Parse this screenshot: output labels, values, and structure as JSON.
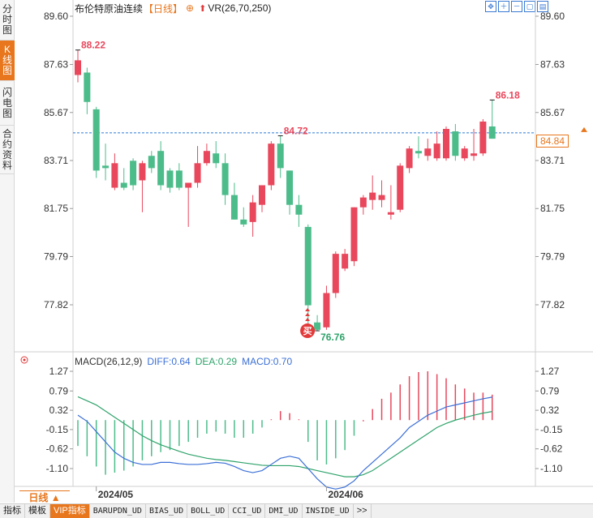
{
  "left_tabs": [
    "分时图",
    "K线图",
    "闪电图",
    "合约资料"
  ],
  "header": {
    "name": "布伦特原油连续",
    "period": "【日线】",
    "plus": "⊕",
    "up_arrow": "⬆",
    "vr": "VR(26,70,250)"
  },
  "tool_icons": [
    "move-icon",
    "zoom-in-icon",
    "zoom-out-icon",
    "restore-icon",
    "settings-icon"
  ],
  "price_axis_ticks": [
    "89.60",
    "87.63",
    "85.67",
    "83.71",
    "81.75",
    "79.79",
    "77.82"
  ],
  "macd_axis_ticks": [
    "1.27",
    "0.79",
    "0.32",
    "-0.15",
    "-0.62",
    "-1.10"
  ],
  "current_price": "84.84",
  "markers": {
    "high_label": "88.22",
    "low_label": "76.76",
    "recent_high": "86.18",
    "mid_peak": "84.72",
    "buy_badge": "买"
  },
  "macd": {
    "label": "MACD(26,12,9)",
    "diff": "DIFF:0.64",
    "dea": "DEA:0.29",
    "macd": "MACD:0.70"
  },
  "date_labels": [
    "2024/05",
    "2024/06"
  ],
  "period_selector": "日线 ▲",
  "bottom_tabs": [
    "指标",
    "模板",
    "VIP指标",
    "BARUPDN_UD",
    "BIAS_UD",
    "BOLL_UD",
    "CCI_UD",
    "DMI_UD",
    "INSIDE_UD",
    ">>"
  ],
  "colors": {
    "up": "#e8475c",
    "down": "#4cbc8a",
    "accent": "#e8761c",
    "diff_line": "#3b6fd6",
    "dea_line": "#2fa36b",
    "price_line": "#2b7bd6"
  },
  "chart_data": {
    "type": "candlestick",
    "title": "布伦特原油连续 日线",
    "ylim": [
      76.5,
      89.9
    ],
    "candles": [
      {
        "o": 87.2,
        "h": 88.22,
        "l": 86.9,
        "c": 87.8
      },
      {
        "o": 87.3,
        "h": 87.5,
        "l": 85.6,
        "c": 86.1
      },
      {
        "o": 85.8,
        "h": 85.9,
        "l": 83.0,
        "c": 83.3
      },
      {
        "o": 83.5,
        "h": 84.4,
        "l": 82.9,
        "c": 83.4
      },
      {
        "o": 82.6,
        "h": 84.0,
        "l": 82.5,
        "c": 83.6
      },
      {
        "o": 82.8,
        "h": 83.4,
        "l": 82.5,
        "c": 82.6
      },
      {
        "o": 83.7,
        "h": 83.8,
        "l": 82.5,
        "c": 82.7
      },
      {
        "o": 82.9,
        "h": 83.7,
        "l": 81.6,
        "c": 83.6
      },
      {
        "o": 83.9,
        "h": 84.1,
        "l": 83.2,
        "c": 83.4
      },
      {
        "o": 84.1,
        "h": 84.5,
        "l": 82.5,
        "c": 82.7
      },
      {
        "o": 83.3,
        "h": 83.4,
        "l": 82.4,
        "c": 82.6
      },
      {
        "o": 83.3,
        "h": 83.6,
        "l": 82.5,
        "c": 82.6
      },
      {
        "o": 82.6,
        "h": 82.8,
        "l": 81.0,
        "c": 82.8
      },
      {
        "o": 82.8,
        "h": 84.3,
        "l": 82.6,
        "c": 83.6
      },
      {
        "o": 83.6,
        "h": 84.4,
        "l": 83.5,
        "c": 84.1
      },
      {
        "o": 84.0,
        "h": 84.5,
        "l": 83.4,
        "c": 83.6
      },
      {
        "o": 83.6,
        "h": 84.0,
        "l": 81.9,
        "c": 82.3
      },
      {
        "o": 82.3,
        "h": 82.8,
        "l": 81.3,
        "c": 81.3
      },
      {
        "o": 81.3,
        "h": 81.8,
        "l": 81.0,
        "c": 81.1
      },
      {
        "o": 81.2,
        "h": 82.3,
        "l": 80.6,
        "c": 82.0
      },
      {
        "o": 81.9,
        "h": 82.7,
        "l": 81.6,
        "c": 82.7
      },
      {
        "o": 82.7,
        "h": 84.5,
        "l": 82.5,
        "c": 84.4
      },
      {
        "o": 84.4,
        "h": 84.72,
        "l": 83.0,
        "c": 83.4
      },
      {
        "o": 83.3,
        "h": 83.3,
        "l": 81.5,
        "c": 81.9
      },
      {
        "o": 81.9,
        "h": 82.3,
        "l": 81.0,
        "c": 81.5
      },
      {
        "o": 81.0,
        "h": 81.1,
        "l": 76.9,
        "c": 77.8
      },
      {
        "o": 77.1,
        "h": 77.4,
        "l": 76.76,
        "c": 76.8
      },
      {
        "o": 76.9,
        "h": 78.6,
        "l": 76.8,
        "c": 78.3
      },
      {
        "o": 78.3,
        "h": 80.0,
        "l": 78.1,
        "c": 79.9
      },
      {
        "o": 79.3,
        "h": 80.1,
        "l": 79.2,
        "c": 79.9
      },
      {
        "o": 79.6,
        "h": 81.8,
        "l": 79.4,
        "c": 81.8
      },
      {
        "o": 81.8,
        "h": 82.3,
        "l": 81.5,
        "c": 82.2
      },
      {
        "o": 82.1,
        "h": 83.1,
        "l": 81.7,
        "c": 82.4
      },
      {
        "o": 82.1,
        "h": 82.9,
        "l": 81.8,
        "c": 82.3
      },
      {
        "o": 81.5,
        "h": 82.7,
        "l": 81.3,
        "c": 81.6
      },
      {
        "o": 81.7,
        "h": 83.6,
        "l": 81.6,
        "c": 83.5
      },
      {
        "o": 83.4,
        "h": 84.3,
        "l": 83.2,
        "c": 84.2
      },
      {
        "o": 84.1,
        "h": 84.7,
        "l": 83.8,
        "c": 84.0
      },
      {
        "o": 83.9,
        "h": 84.6,
        "l": 83.7,
        "c": 84.2
      },
      {
        "o": 83.8,
        "h": 84.9,
        "l": 83.7,
        "c": 84.4
      },
      {
        "o": 83.8,
        "h": 85.1,
        "l": 83.7,
        "c": 85.0
      },
      {
        "o": 84.9,
        "h": 85.2,
        "l": 83.7,
        "c": 83.9
      },
      {
        "o": 83.8,
        "h": 84.3,
        "l": 83.7,
        "c": 84.2
      },
      {
        "o": 83.9,
        "h": 85.0,
        "l": 83.7,
        "c": 84.0
      },
      {
        "o": 84.0,
        "h": 85.4,
        "l": 83.9,
        "c": 85.3
      },
      {
        "o": 85.1,
        "h": 86.18,
        "l": 84.6,
        "c": 84.6
      }
    ],
    "macd_hist": [
      -0.55,
      -0.8,
      -1.05,
      -1.25,
      -1.2,
      -1.15,
      -1.05,
      -0.9,
      -0.8,
      -0.7,
      -0.65,
      -0.55,
      -0.45,
      -0.35,
      -0.25,
      -0.2,
      -0.25,
      -0.35,
      -0.35,
      -0.25,
      -0.1,
      0.1,
      0.3,
      0.25,
      0.1,
      -0.45,
      -0.9,
      -1.0,
      -0.85,
      -0.65,
      -0.3,
      0.05,
      0.35,
      0.6,
      0.75,
      0.95,
      1.15,
      1.25,
      1.27,
      1.2,
      1.1,
      0.95,
      0.85,
      0.75,
      0.75,
      0.7
    ],
    "diff_series": [
      0.2,
      0.05,
      -0.2,
      -0.45,
      -0.7,
      -0.85,
      -0.95,
      -1.0,
      -1.0,
      -0.95,
      -0.95,
      -0.98,
      -1.0,
      -1.0,
      -0.98,
      -0.95,
      -0.97,
      -1.05,
      -1.15,
      -1.2,
      -1.15,
      -1.0,
      -0.85,
      -0.8,
      -0.85,
      -1.1,
      -1.35,
      -1.55,
      -1.6,
      -1.55,
      -1.4,
      -1.15,
      -0.95,
      -0.75,
      -0.55,
      -0.35,
      -0.1,
      0.05,
      0.2,
      0.3,
      0.4,
      0.45,
      0.5,
      0.55,
      0.6,
      0.64
    ],
    "dea_series": [
      0.65,
      0.55,
      0.45,
      0.3,
      0.15,
      0.0,
      -0.15,
      -0.3,
      -0.42,
      -0.52,
      -0.6,
      -0.68,
      -0.75,
      -0.8,
      -0.85,
      -0.88,
      -0.9,
      -0.93,
      -0.96,
      -0.99,
      -1.02,
      -1.03,
      -1.03,
      -1.03,
      -1.05,
      -1.1,
      -1.15,
      -1.2,
      -1.25,
      -1.3,
      -1.3,
      -1.25,
      -1.15,
      -1.0,
      -0.85,
      -0.7,
      -0.55,
      -0.4,
      -0.25,
      -0.1,
      0.0,
      0.08,
      0.14,
      0.2,
      0.25,
      0.29
    ],
    "price_reference_line": 84.84
  }
}
